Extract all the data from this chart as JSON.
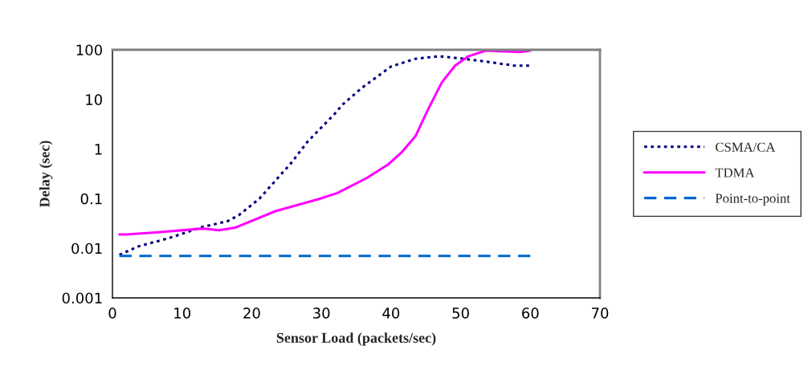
{
  "chart_data": {
    "type": "line",
    "xlabel": "Sensor Load (packets/sec)",
    "ylabel": "Delay (sec)",
    "log": "y",
    "xlim": [
      0,
      70
    ],
    "xticks": [
      0,
      10,
      20,
      30,
      40,
      50,
      60,
      70
    ],
    "ylim": [
      0.001,
      100
    ],
    "yticks": [
      {
        "value": 0.001,
        "label": "0.001"
      },
      {
        "value": 0.01,
        "label": "0.01"
      },
      {
        "value": 0.1,
        "label": "0.1"
      },
      {
        "value": 1,
        "label": "1"
      },
      {
        "value": 10,
        "label": "10"
      },
      {
        "value": 100,
        "label": "100"
      }
    ],
    "grid": false,
    "legend": "right",
    "series": [
      {
        "name": "CSMA/CA",
        "color": "#000080",
        "line_style": "dotted",
        "x": [
          1,
          3.8,
          8.1,
          13,
          16.5,
          18.2,
          21.1,
          25.7,
          28,
          31.9,
          33.1,
          35.8,
          40,
          43.5,
          46.9,
          50.4,
          53.9,
          57.7,
          60
        ],
        "values": [
          0.0074,
          0.011,
          0.016,
          0.027,
          0.035,
          0.047,
          0.1,
          0.53,
          1.4,
          5.1,
          8,
          17,
          46,
          66,
          74,
          66,
          57,
          48,
          48
        ]
      },
      {
        "name": "TDMA",
        "color": "#ff00ff",
        "line_style": "solid",
        "x": [
          1,
          2,
          6.6,
          13,
          15.3,
          17.6,
          23.4,
          29.6,
          32.3,
          36.5,
          39.6,
          41.5,
          43.5,
          45.3,
          47.3,
          49.2,
          51.1,
          53.6,
          56.2,
          58.5,
          60
        ],
        "values": [
          0.019,
          0.019,
          0.021,
          0.025,
          0.023,
          0.026,
          0.056,
          0.098,
          0.13,
          0.26,
          0.49,
          0.85,
          1.8,
          6.2,
          22,
          48,
          74,
          96,
          93,
          90,
          96
        ]
      },
      {
        "name": "Point-to-point",
        "color": "#0066cc",
        "line_style": "dashed",
        "x": [
          1,
          60
        ],
        "values": [
          0.007,
          0.007
        ]
      }
    ]
  }
}
